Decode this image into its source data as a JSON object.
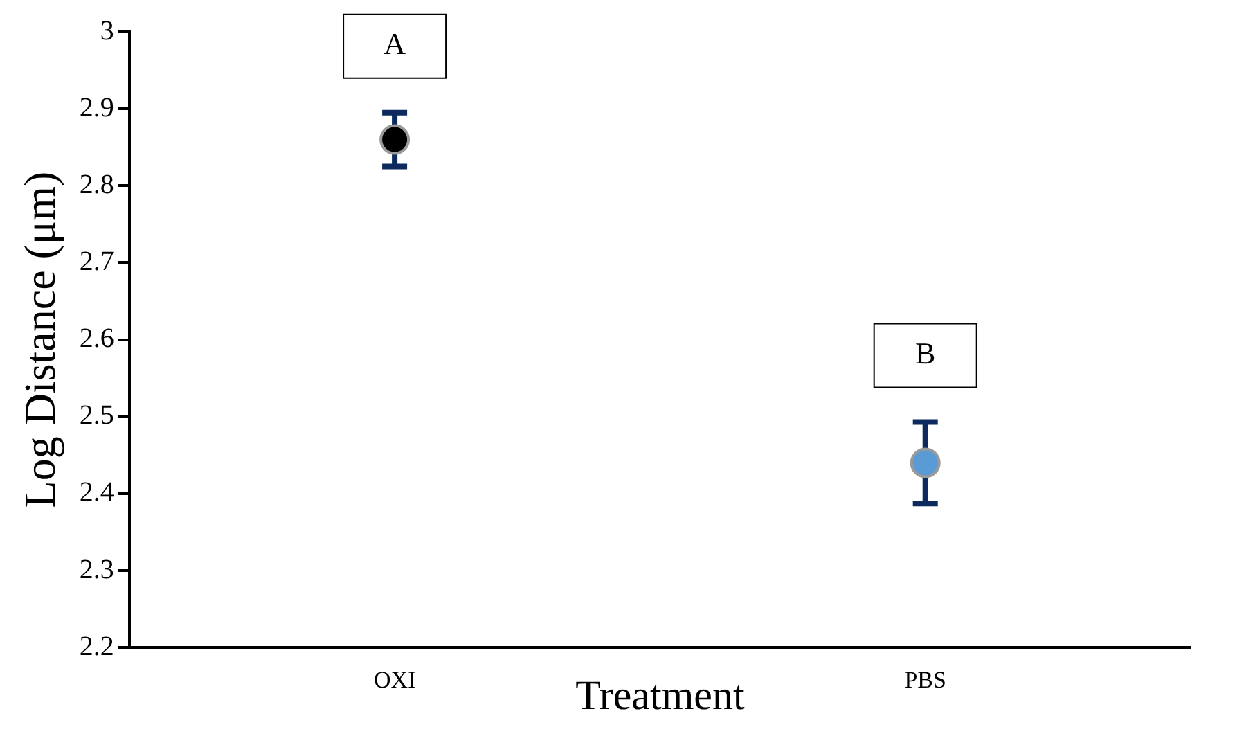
{
  "chart_data": {
    "type": "scatter",
    "xlabel": "Treatment",
    "ylabel": "Log Distance (μm)",
    "categories": [
      "OXI",
      "PBS"
    ],
    "values": [
      2.86,
      2.44
    ],
    "errors": [
      0.035,
      0.053
    ],
    "colors": [
      "#000000",
      "#5b9bd5"
    ],
    "marker": "circle",
    "ylim": [
      2.2,
      3
    ],
    "yticks": [
      2.2,
      2.3,
      2.4,
      2.5,
      2.6,
      2.7,
      2.8,
      2.9,
      3
    ],
    "annotations": [
      "A",
      "B"
    ],
    "grid": false,
    "legend": false
  }
}
